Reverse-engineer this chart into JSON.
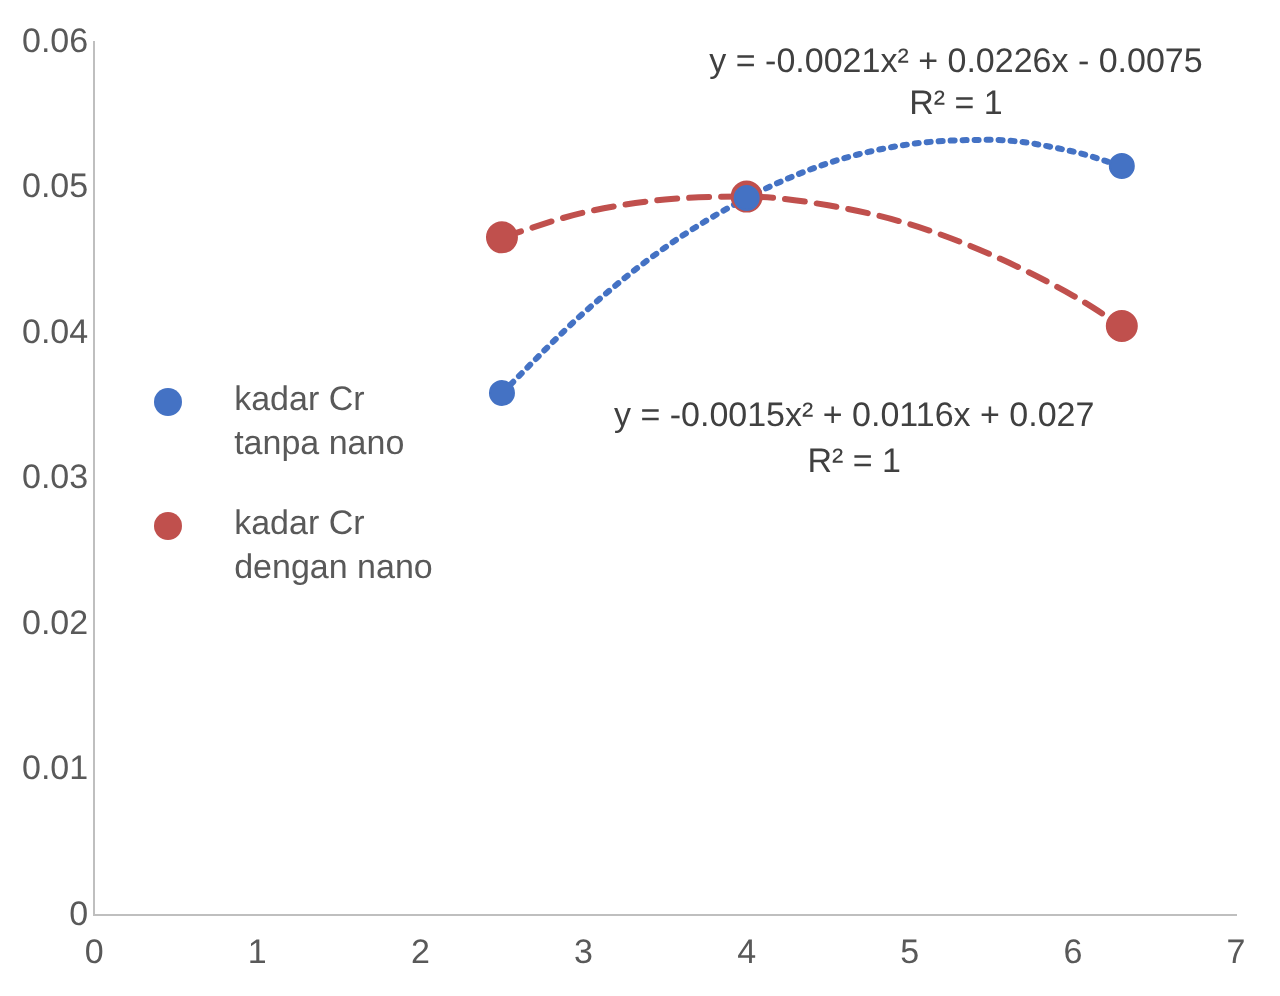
{
  "chart_data": {
    "type": "scatter",
    "xlim": [
      0,
      7
    ],
    "xticks": [
      0,
      1,
      2,
      3,
      4,
      5,
      6,
      7
    ],
    "ylim": [
      0,
      0.06
    ],
    "yticks": [
      0,
      0.01,
      0.02,
      0.03,
      0.04,
      0.05,
      0.06
    ],
    "grid": false,
    "legend": "left",
    "marker": "circle",
    "series": [
      {
        "name": "kadar Cr tanpa nano",
        "color": "#4472c4",
        "x": [
          2.5,
          4,
          6.3
        ],
        "values": [
          0.0359,
          0.0493,
          0.0515
        ]
      },
      {
        "name": "kadar Cr dengan nano",
        "color": "#c0504d",
        "x": [
          2.5,
          4,
          6.3
        ],
        "values": [
          0.0466,
          0.0494,
          0.0405
        ]
      },
      {
        "type": "line",
        "color": "#4472c4",
        "line_style": "dotted",
        "marker": "none",
        "x": [
          2.5,
          3,
          3.5,
          4,
          4.5,
          5,
          5.5,
          6,
          6.3
        ],
        "values": [
          0.0359,
          0.0414,
          0.0459,
          0.0493,
          0.0517,
          0.053,
          0.0533,
          0.0525,
          0.0515
        ]
      },
      {
        "type": "line",
        "color": "#c0504d",
        "line_style": "dashed",
        "marker": "none",
        "x": [
          2.5,
          3,
          3.5,
          4,
          4.5,
          5,
          5.5,
          6,
          6.3
        ],
        "values": [
          0.0466,
          0.0483,
          0.0492,
          0.0494,
          0.0488,
          0.0475,
          0.0454,
          0.0426,
          0.0405
        ]
      }
    ],
    "annotations": [
      "y = -0.0021x² + 0.0226x - 0.0075",
      "R² = 1",
      "y = -0.0015x² + 0.0116x + 0.027",
      "R² = 1"
    ]
  }
}
